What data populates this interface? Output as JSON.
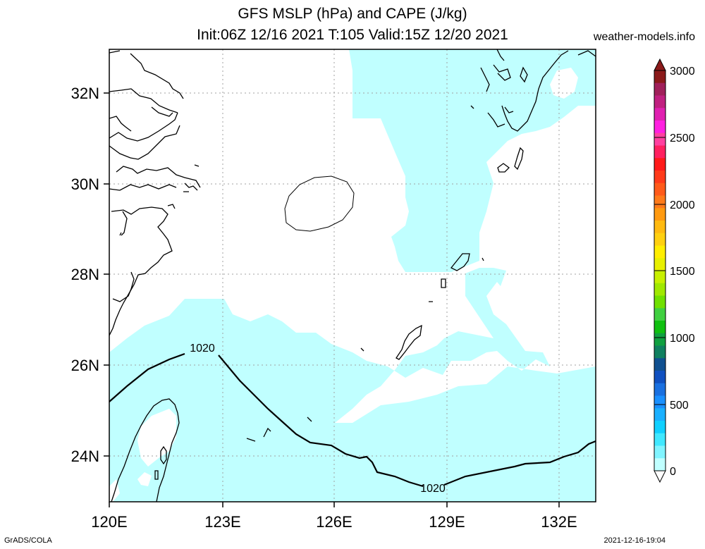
{
  "header": {
    "title_line1": "GFS MSLP (hPa) and CAPE (J/kg)",
    "title_line2": "Init:06Z 12/16 2021 T:105 Valid:15Z 12/20 2021",
    "site": "weather-models.info"
  },
  "footer": {
    "left": "GrADS/COLA",
    "right": "2021-12-16-19:04"
  },
  "map": {
    "lon_ticks": [
      "120E",
      "123E",
      "126E",
      "129E",
      "132E"
    ],
    "lat_ticks": [
      "32N",
      "30N",
      "28N",
      "26N",
      "24N"
    ],
    "contour_labels": [
      "1020",
      "1020"
    ],
    "colors": {
      "cape_low": "#c0ffff",
      "coast": "#000000",
      "grid": "#a0a0a0"
    }
  },
  "colorbar": {
    "labels": [
      "3000",
      "2500",
      "2000",
      "1500",
      "1000",
      "500",
      "0"
    ],
    "colors": [
      "#8b1a1a",
      "#a0205a",
      "#c02080",
      "#e020b0",
      "#ff20e0",
      "#ff40a0",
      "#ff2060",
      "#ff1a1a",
      "#ff3a1a",
      "#ff5a1a",
      "#ff7a1a",
      "#ff9a10",
      "#ffba10",
      "#ffd010",
      "#ffee00",
      "#e8f000",
      "#c8f000",
      "#a0e800",
      "#70e000",
      "#40d040",
      "#10c010",
      "#10a040",
      "#108060",
      "#105090",
      "#1050c0",
      "#1a70e0",
      "#1a90ff",
      "#1ab0ff",
      "#10d0ff",
      "#40e8ff",
      "#80f4ff",
      "#c0ffff"
    ]
  }
}
